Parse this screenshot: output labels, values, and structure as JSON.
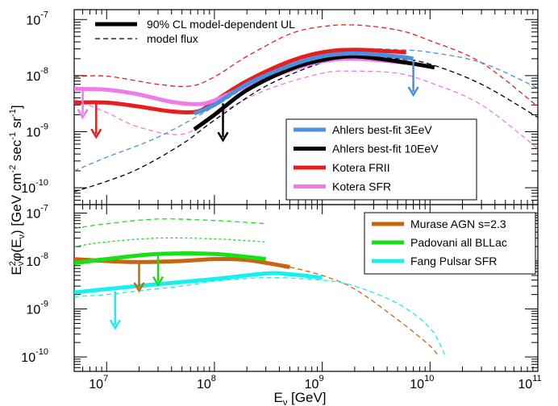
{
  "chart_data": [
    {
      "type": "line",
      "panel": "top",
      "x_scale": "log",
      "y_scale": "log",
      "xlim": [
        5000000.0,
        100000000000.0
      ],
      "ylim": [
        5e-11,
        1.5e-07
      ],
      "yticks": [
        {
          "base": "10",
          "exp": "-7"
        },
        {
          "base": "10",
          "exp": "-8"
        },
        {
          "base": "10",
          "exp": "-9"
        },
        {
          "base": "10",
          "exp": "-10"
        }
      ],
      "legend_style": [
        {
          "label": "90% CL model-dependent UL",
          "color": "#000000",
          "style": "solid"
        },
        {
          "label": "model flux",
          "color": "#000000",
          "style": "dashed"
        }
      ],
      "legend_models": [
        {
          "label": "Ahlers best-fit 3EeV",
          "color": "#4a90e2"
        },
        {
          "label": "Ahlers best-fit 10EeV",
          "color": "#000000"
        },
        {
          "label": "Kotera FRII",
          "color": "#e81e1e"
        },
        {
          "label": "Kotera SFR",
          "color": "#ee7ce8"
        }
      ],
      "series": [
        {
          "color": "#e81e1e",
          "style": "dashed",
          "points": [
            [
              5000000.0,
              9.5e-09
            ],
            [
              10000000.0,
              9.8e-09
            ],
            [
              30000000.0,
              7e-09
            ],
            [
              60000000.0,
              6.5e-09
            ],
            [
              100000000.0,
              9.5e-09
            ],
            [
              200000000.0,
              2.2e-08
            ],
            [
              500000000.0,
              5.5e-08
            ],
            [
              1000000000.0,
              7.5e-08
            ],
            [
              2000000000.0,
              8e-08
            ],
            [
              5000000000.0,
              6.5e-08
            ],
            [
              10000000000.0,
              4.2e-08
            ],
            [
              30000000000.0,
              1.7e-08
            ],
            [
              100000000000.0,
              2.8e-09
            ]
          ]
        },
        {
          "color": "#ee7ce8",
          "style": "dashed",
          "points": [
            [
              5000000.0,
              3.8e-09
            ],
            [
              10000000.0,
              2.2e-09
            ],
            [
              20000000.0,
              1.2e-09
            ],
            [
              50000000.0,
              9e-10
            ],
            [
              100000000.0,
              1.9e-09
            ],
            [
              300000000.0,
              5.5e-09
            ],
            [
              1000000000.0,
              1.1e-08
            ],
            [
              2000000000.0,
              1.2e-08
            ],
            [
              5000000000.0,
              1.1e-08
            ],
            [
              10000000000.0,
              7.5e-09
            ],
            [
              30000000000.0,
              3e-09
            ],
            [
              100000000000.0,
              5e-10
            ]
          ]
        },
        {
          "color": "#4a90e2",
          "style": "dashed",
          "points": [
            [
              5000000.0,
              2e-10
            ],
            [
              10000000.0,
              3.5e-10
            ],
            [
              30000000.0,
              8e-10
            ],
            [
              100000000.0,
              2.8e-09
            ],
            [
              300000000.0,
              1e-08
            ],
            [
              1000000000.0,
              2.4e-08
            ],
            [
              2000000000.0,
              3e-08
            ],
            [
              5000000000.0,
              2.9e-08
            ],
            [
              10000000000.0,
              2.6e-08
            ],
            [
              30000000000.0,
              1.7e-08
            ],
            [
              100000000000.0,
              6e-09
            ]
          ]
        },
        {
          "color": "#000000",
          "style": "dashed",
          "points": [
            [
              5000000.0,
              8.5e-11
            ],
            [
              10000000.0,
              1.3e-10
            ],
            [
              20000000.0,
              2.2e-10
            ],
            [
              50000000.0,
              6e-10
            ],
            [
              100000000.0,
              1.6e-09
            ],
            [
              300000000.0,
              6.5e-09
            ],
            [
              1000000000.0,
              1.7e-08
            ],
            [
              2000000000.0,
              2.1e-08
            ],
            [
              5000000000.0,
              2e-08
            ],
            [
              10000000000.0,
              1.6e-08
            ],
            [
              30000000000.0,
              7e-09
            ],
            [
              100000000000.0,
              1.8e-09
            ]
          ]
        },
        {
          "color": "#e81e1e",
          "style": "solid",
          "width": 5,
          "points": [
            [
              5000000.0,
              3.3e-09
            ],
            [
              10000000.0,
              3.3e-09
            ],
            [
              20000000.0,
              2.8e-09
            ],
            [
              40000000.0,
              2.3e-09
            ],
            [
              70000000.0,
              2.3e-09
            ],
            [
              100000000.0,
              3.5e-09
            ],
            [
              200000000.0,
              8e-09
            ],
            [
              500000000.0,
              1.8e-08
            ],
            [
              1000000000.0,
              2.6e-08
            ],
            [
              2000000000.0,
              2.9e-08
            ],
            [
              6000000000.0,
              2.6e-08
            ]
          ]
        },
        {
          "color": "#ee7ce8",
          "style": "solid",
          "width": 5,
          "points": [
            [
              5000000.0,
              5.8e-09
            ],
            [
              10000000.0,
              5.6e-09
            ],
            [
              20000000.0,
              4.6e-09
            ],
            [
              40000000.0,
              3.4e-09
            ],
            [
              70000000.0,
              3.1e-09
            ],
            [
              100000000.0,
              3.6e-09
            ],
            [
              200000000.0,
              6.5e-09
            ],
            [
              500000000.0,
              1.25e-08
            ],
            [
              1000000000.0,
              1.8e-08
            ],
            [
              2000000000.0,
              2e-08
            ],
            [
              6000000000.0,
              1.7e-08
            ]
          ]
        },
        {
          "color": "#000000",
          "style": "solid",
          "width": 5,
          "points": [
            [
              65000000.0,
              1.1e-09
            ],
            [
              100000000.0,
              2e-09
            ],
            [
              200000000.0,
              5.5e-09
            ],
            [
              500000000.0,
              1.3e-08
            ],
            [
              1000000000.0,
              1.9e-08
            ],
            [
              2000000000.0,
              2.2e-08
            ],
            [
              5000000000.0,
              1.8e-08
            ],
            [
              11000000000.0,
              1.4e-08
            ]
          ]
        },
        {
          "color": "#4a90e2",
          "style": "solid",
          "width": 5,
          "points": [
            [
              65000000.0,
              2.1e-09
            ],
            [
              100000000.0,
              3e-09
            ],
            [
              200000000.0,
              7e-09
            ],
            [
              500000000.0,
              1.5e-08
            ],
            [
              1000000000.0,
              2.2e-08
            ],
            [
              2000000000.0,
              2.5e-08
            ],
            [
              5000000000.0,
              2.2e-08
            ],
            [
              7000000000.0,
              2e-08
            ]
          ]
        }
      ],
      "arrows": [
        {
          "x": 6000000.0,
          "y_from": 5.5e-09,
          "y_to": 1.8e-09,
          "color": "#ee7ce8"
        },
        {
          "x": 8000000.0,
          "y_from": 3.2e-09,
          "y_to": 8e-10,
          "color": "#e81e1e"
        },
        {
          "x": 120000000.0,
          "y_from": 3.2e-09,
          "y_to": 7e-10,
          "color": "#000000"
        },
        {
          "x": 7000000000.0,
          "y_from": 1.8e-08,
          "y_to": 4.5e-09,
          "color": "#4a90e2"
        }
      ]
    },
    {
      "type": "line",
      "panel": "bottom",
      "x_scale": "log",
      "y_scale": "log",
      "xlim": [
        5000000.0,
        100000000000.0
      ],
      "ylim": [
        5e-11,
        1.5e-07
      ],
      "xticks": [
        {
          "base": "10",
          "exp": "7",
          "value": 10000000.0
        },
        {
          "base": "10",
          "exp": "8",
          "value": 100000000.0
        },
        {
          "base": "10",
          "exp": "9",
          "value": 1000000000.0
        },
        {
          "base": "10",
          "exp": "10",
          "value": 10000000000.0
        },
        {
          "base": "10",
          "exp": "11",
          "value": 100000000000.0
        }
      ],
      "yticks": [
        {
          "base": "10",
          "exp": "-7"
        },
        {
          "base": "10",
          "exp": "-8"
        },
        {
          "base": "10",
          "exp": "-9"
        },
        {
          "base": "10",
          "exp": "-10"
        }
      ],
      "legend_models": [
        {
          "label": "Murase AGN s=2.3",
          "color": "#c8650f"
        },
        {
          "label": "Padovani all BLLac",
          "color": "#18e018"
        },
        {
          "label": "Fang Pulsar SFR",
          "color": "#18f0f0"
        }
      ],
      "series": [
        {
          "color": "#18e018",
          "style": "dashed",
          "points": [
            [
              5000000.0,
              4.8e-08
            ],
            [
              10000000.0,
              6e-08
            ],
            [
              30000000.0,
              7.5e-08
            ],
            [
              100000000.0,
              7e-08
            ],
            [
              300000000.0,
              6e-08
            ]
          ]
        },
        {
          "color": "#18e018",
          "style": "dotted",
          "points": [
            [
              5000000.0,
              2e-08
            ],
            [
              10000000.0,
              2.5e-08
            ],
            [
              30000000.0,
              3e-08
            ],
            [
              100000000.0,
              2.9e-08
            ],
            [
              300000000.0,
              2.5e-08
            ]
          ]
        },
        {
          "color": "#c8650f",
          "style": "dashed",
          "points": [
            [
              500000000.0,
              7.5e-09
            ],
            [
              1000000000.0,
              5e-09
            ],
            [
              2000000000.0,
              2.6e-09
            ],
            [
              5000000000.0,
              6e-10
            ],
            [
              10000000000.0,
              1.7e-10
            ],
            [
              12000000000.0,
              1e-10
            ]
          ]
        },
        {
          "color": "#18f0f0",
          "style": "dashed",
          "points": [
            [
              5000000.0,
              1.8e-09
            ],
            [
              10000000.0,
              2e-09
            ],
            [
              20000000.0,
              2.4e-09
            ],
            [
              50000000.0,
              3e-09
            ],
            [
              100000000.0,
              3.8e-09
            ],
            [
              300000000.0,
              4.5e-09
            ],
            [
              1000000000.0,
              4e-09
            ],
            [
              2000000000.0,
              3e-09
            ],
            [
              5000000000.0,
              1.3e-09
            ],
            [
              10000000000.0,
              4e-10
            ],
            [
              14000000000.0,
              1e-10
            ]
          ]
        },
        {
          "color": "#c8650f",
          "style": "solid",
          "width": 5,
          "points": [
            [
              5000000.0,
              1.1e-08
            ],
            [
              10000000.0,
              1e-08
            ],
            [
              20000000.0,
              9.5e-09
            ],
            [
              50000000.0,
              1e-08
            ],
            [
              100000000.0,
              1.1e-08
            ],
            [
              200000000.0,
              1.05e-08
            ],
            [
              500000000.0,
              7.5e-09
            ]
          ]
        },
        {
          "color": "#18e018",
          "style": "solid",
          "width": 5,
          "points": [
            [
              5000000.0,
              9e-09
            ],
            [
              10000000.0,
              1.1e-08
            ],
            [
              30000000.0,
              1.4e-08
            ],
            [
              100000000.0,
              1.4e-08
            ],
            [
              300000000.0,
              1.1e-08
            ]
          ]
        },
        {
          "color": "#18f0f0",
          "style": "solid",
          "width": 5,
          "points": [
            [
              5000000.0,
              2.2e-09
            ],
            [
              10000000.0,
              2.6e-09
            ],
            [
              30000000.0,
              3.3e-09
            ],
            [
              100000000.0,
              4.2e-09
            ],
            [
              300000000.0,
              5.5e-09
            ],
            [
              500000000.0,
              5.3e-09
            ],
            [
              1000000000.0,
              4.5e-09
            ]
          ]
        }
      ],
      "arrows": [
        {
          "x": 12000000.0,
          "y_from": 2.3e-09,
          "y_to": 4e-10,
          "color": "#18f0f0"
        },
        {
          "x": 20000000.0,
          "y_from": 9.5e-09,
          "y_to": 2.4e-09,
          "color": "#c8650f"
        },
        {
          "x": 30000000.0,
          "y_from": 1.4e-08,
          "y_to": 3.2e-09,
          "color": "#18e018"
        }
      ]
    }
  ],
  "axes": {
    "ylabel": {
      "pre": "E",
      "sup1": "2",
      "sub1": "ν",
      "mid": "φ(E",
      "sub2": "ν",
      "post": ") [GeV cm",
      "sup2": "-2",
      "mid2": " sec",
      "sup3": "-1",
      "mid3": " sr",
      "sup4": "-1",
      "end": "]"
    },
    "xlabel": {
      "pre": "E",
      "sub": "ν",
      "post": " [GeV]"
    }
  }
}
